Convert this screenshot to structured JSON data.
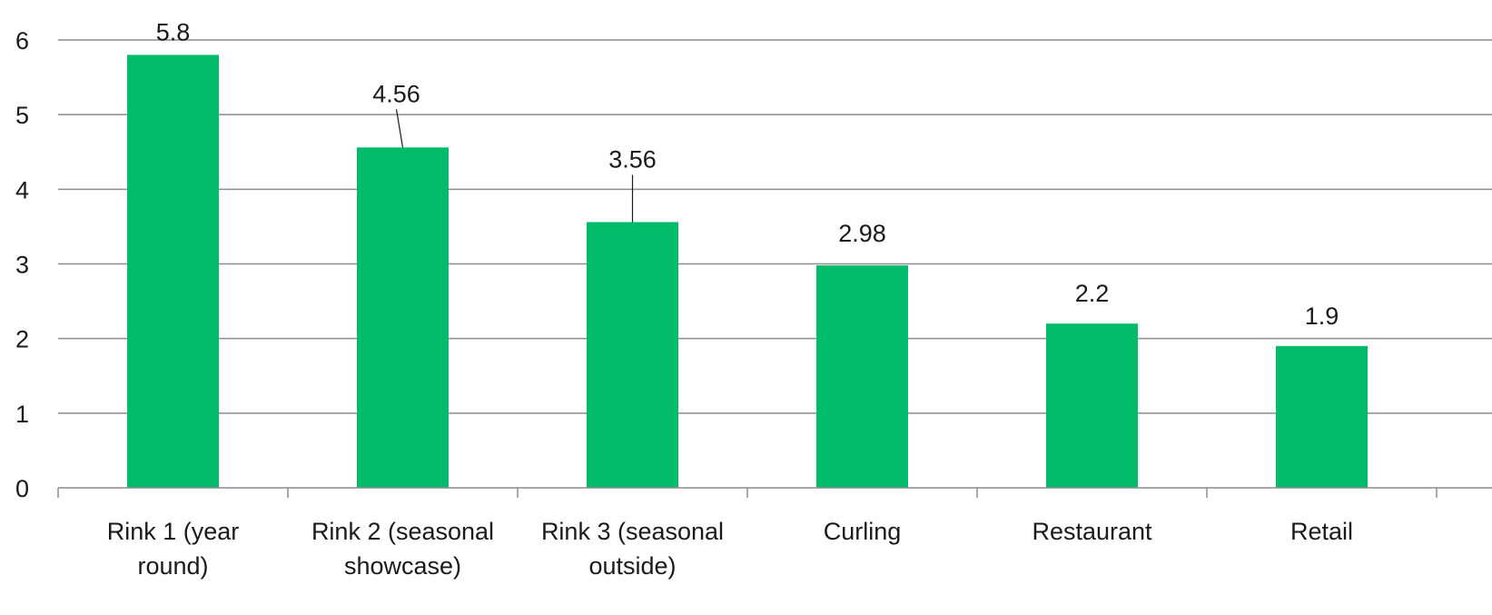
{
  "chart_data": {
    "type": "bar",
    "categories": [
      [
        "Rink 1 (year",
        "round)"
      ],
      [
        "Rink 2 (seasonal",
        "showcase)"
      ],
      [
        "Rink 3 (seasonal",
        "outside)"
      ],
      [
        "Curling"
      ],
      [
        "Restaurant"
      ],
      [
        "Retail"
      ]
    ],
    "values": [
      5.8,
      4.56,
      3.56,
      2.98,
      2.2,
      1.9
    ],
    "data_labels": [
      "5.8",
      "4.56",
      "3.56",
      "2.98",
      "2.2",
      "1.9"
    ],
    "y_ticks": [
      "0",
      "1",
      "2",
      "3",
      "4",
      "5",
      "6"
    ],
    "ylim": [
      0,
      6
    ],
    "grid": true,
    "legend": "none",
    "title": "",
    "xlabel": "",
    "ylabel": "",
    "bar_color": "#00bb6a",
    "grid_color": "#8c8c8c"
  }
}
